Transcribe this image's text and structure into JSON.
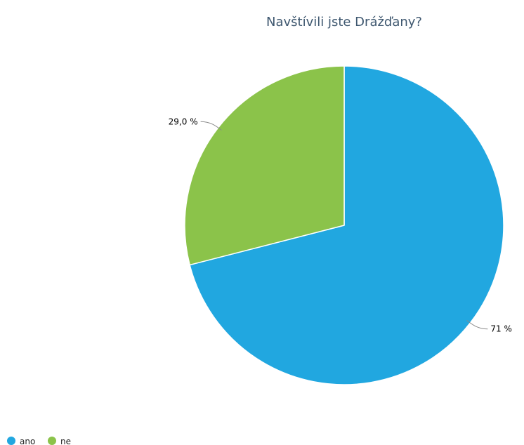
{
  "chart_data": {
    "type": "pie",
    "title": "Navštívili jste Drážďany?",
    "slices": [
      {
        "label": "ano",
        "value": 71.0,
        "data_label": "71 %",
        "color": "#21a7e0"
      },
      {
        "label": "ne",
        "value": 29.0,
        "data_label": "29,0 %",
        "color": "#8bc34a"
      }
    ],
    "start_angle_deg": 0,
    "direction": "clockwise",
    "legend": {
      "position": "bottom-left"
    }
  }
}
